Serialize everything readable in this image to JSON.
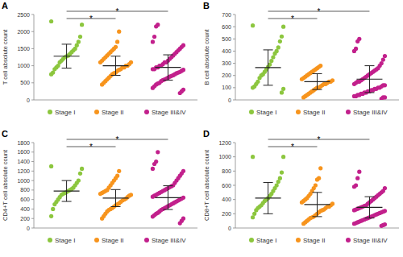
{
  "chart_data": [
    {
      "type": "scatter",
      "title": "A",
      "y_label": "T cell absolute count",
      "legend": "bottom",
      "ylim": [
        0,
        2500
      ],
      "yticks": [
        0,
        500,
        1000,
        1500,
        2000,
        2500
      ],
      "series": [
        {
          "name": "Stage I",
          "color": "#8cc63e",
          "mean": 1280,
          "sd": 350,
          "values": [
            2300,
            2200,
            1850,
            1700,
            1600,
            1500,
            1450,
            1400,
            1350,
            1300,
            1280,
            1250,
            1200,
            1150,
            1100,
            1000,
            950,
            900,
            800,
            750
          ]
        },
        {
          "name": "Stage II",
          "color": "#f7941d",
          "mean": 1000,
          "sd": 280,
          "values": [
            2000,
            1700,
            1550,
            1500,
            1450,
            1400,
            1350,
            1300,
            1250,
            1200,
            1150,
            1100,
            1100,
            1050,
            1000,
            1000,
            950,
            950,
            900,
            880,
            850,
            800,
            780,
            750,
            700,
            650,
            600,
            550,
            500,
            450
          ]
        },
        {
          "name": "Stage III&IV",
          "color": "#c2208c",
          "mean": 950,
          "sd": 370,
          "values": [
            2200,
            2150,
            1850,
            1700,
            1600,
            1550,
            1500,
            1450,
            1400,
            1350,
            1300,
            1250,
            1200,
            1150,
            1100,
            1100,
            1050,
            1000,
            1000,
            950,
            950,
            900,
            900,
            880,
            850,
            820,
            800,
            780,
            750,
            720,
            700,
            680,
            650,
            620,
            600,
            580,
            550,
            500,
            480,
            450,
            400,
            350,
            300,
            250,
            200
          ]
        }
      ],
      "comparisons": [
        {
          "groups": [
            0,
            1
          ],
          "label": "*"
        },
        {
          "groups": [
            0,
            2
          ],
          "label": "*"
        }
      ]
    },
    {
      "type": "scatter",
      "title": "B",
      "y_label": "B cell absolute count",
      "legend": "bottom",
      "ylim": [
        0,
        700
      ],
      "yticks": [
        0,
        100,
        200,
        300,
        400,
        500,
        600,
        700
      ],
      "series": [
        {
          "name": "Stage I",
          "color": "#8cc63e",
          "mean": 265,
          "sd": 145,
          "values": [
            610,
            600,
            520,
            480,
            430,
            400,
            380,
            350,
            320,
            290,
            270,
            250,
            230,
            210,
            200,
            180,
            150,
            130,
            110,
            100,
            90,
            60
          ]
        },
        {
          "name": "Stage II",
          "color": "#f7941d",
          "mean": 150,
          "sd": 65,
          "values": [
            280,
            270,
            260,
            250,
            240,
            230,
            220,
            210,
            200,
            190,
            180,
            170,
            160,
            150,
            150,
            140,
            130,
            130,
            120,
            110,
            100,
            100,
            90,
            80,
            70,
            60,
            50,
            40,
            30,
            20
          ]
        },
        {
          "name": "Stage III&IV",
          "color": "#c2208c",
          "mean": 170,
          "sd": 110,
          "values": [
            500,
            480,
            420,
            400,
            360,
            330,
            300,
            280,
            260,
            250,
            240,
            230,
            220,
            210,
            200,
            190,
            180,
            170,
            160,
            150,
            150,
            140,
            130,
            120,
            120,
            110,
            100,
            100,
            90,
            90,
            80,
            80,
            70,
            70,
            60,
            60,
            50,
            50,
            40,
            40,
            30,
            30,
            20,
            20,
            10
          ]
        }
      ],
      "comparisons": [
        {
          "groups": [
            0,
            1
          ],
          "label": "*"
        },
        {
          "groups": [
            0,
            2
          ],
          "label": "*"
        }
      ]
    },
    {
      "type": "scatter",
      "title": "C",
      "y_label": "CD4+T cell absolute count",
      "legend": "bottom",
      "ylim": [
        0,
        1800
      ],
      "yticks": [
        0,
        200,
        400,
        600,
        800,
        1000,
        1200,
        1400,
        1600,
        1800
      ],
      "series": [
        {
          "name": "Stage I",
          "color": "#8cc63e",
          "mean": 780,
          "sd": 220,
          "values": [
            1300,
            1250,
            1150,
            1000,
            950,
            900,
            850,
            820,
            800,
            780,
            760,
            740,
            720,
            700,
            650,
            600,
            550,
            500,
            400,
            250
          ]
        },
        {
          "name": "Stage II",
          "color": "#f7941d",
          "mean": 630,
          "sd": 180,
          "values": [
            1200,
            1100,
            1050,
            1000,
            950,
            900,
            850,
            800,
            780,
            760,
            740,
            720,
            700,
            680,
            650,
            620,
            600,
            580,
            550,
            520,
            500,
            480,
            450,
            420,
            400,
            380,
            350,
            300,
            250,
            200
          ]
        },
        {
          "name": "Stage III&IV",
          "color": "#c2208c",
          "mean": 640,
          "sd": 250,
          "values": [
            1600,
            1400,
            1350,
            1250,
            1200,
            1150,
            1100,
            1050,
            1000,
            950,
            900,
            880,
            860,
            840,
            820,
            800,
            780,
            760,
            740,
            720,
            700,
            680,
            660,
            640,
            620,
            600,
            580,
            560,
            540,
            520,
            500,
            480,
            460,
            440,
            420,
            400,
            380,
            350,
            320,
            300,
            270,
            240,
            200,
            150,
            100
          ]
        }
      ],
      "comparisons": [
        {
          "groups": [
            0,
            1
          ],
          "label": "*"
        },
        {
          "groups": [
            0,
            2
          ],
          "label": "*"
        }
      ]
    },
    {
      "type": "scatter",
      "title": "D",
      "y_label": "CD8+T cell absolute count",
      "legend": "bottom",
      "ylim": [
        0,
        1200
      ],
      "yticks": [
        0,
        200,
        400,
        600,
        800,
        1000,
        1200
      ],
      "series": [
        {
          "name": "Stage I",
          "color": "#8cc63e",
          "mean": 420,
          "sd": 220,
          "values": [
            1000,
            1000,
            780,
            700,
            650,
            600,
            560,
            520,
            480,
            450,
            420,
            400,
            380,
            350,
            320,
            300,
            280,
            250,
            200,
            150
          ]
        },
        {
          "name": "Stage II",
          "color": "#f7941d",
          "mean": 330,
          "sd": 170,
          "values": [
            840,
            700,
            680,
            600,
            560,
            520,
            480,
            450,
            420,
            400,
            380,
            360,
            340,
            320,
            300,
            300,
            280,
            260,
            250,
            240,
            220,
            200,
            180,
            160,
            150,
            140,
            120,
            100,
            80,
            60
          ]
        },
        {
          "name": "Stage III&IV",
          "color": "#c2208c",
          "mean": 290,
          "sd": 150,
          "values": [
            790,
            700,
            600,
            580,
            560,
            520,
            500,
            480,
            460,
            440,
            420,
            400,
            380,
            360,
            340,
            320,
            310,
            300,
            290,
            280,
            270,
            260,
            250,
            240,
            230,
            220,
            210,
            200,
            190,
            180,
            170,
            160,
            150,
            140,
            130,
            120,
            110,
            100,
            90,
            80,
            70,
            60,
            50,
            40,
            30
          ]
        }
      ],
      "comparisons": [
        {
          "groups": [
            0,
            1
          ],
          "label": "*"
        },
        {
          "groups": [
            0,
            2
          ],
          "label": "*"
        }
      ]
    }
  ]
}
